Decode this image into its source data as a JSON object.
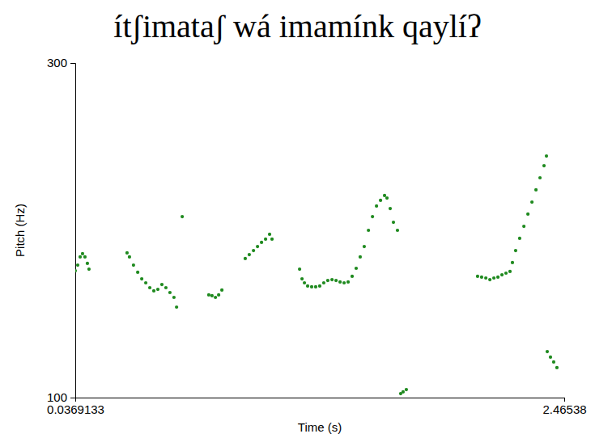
{
  "chart_data": {
    "type": "scatter",
    "title": "ítʃimataʃ wá imamínk qaylíʔ",
    "x_label": "Time (s)",
    "y_label": "Pitch (Hz)",
    "xlim": [
      0.0369133,
      2.46538
    ],
    "xticks": [
      0.0369133,
      2.46538
    ],
    "ylim": [
      100,
      300
    ],
    "yticks": [
      100,
      300
    ],
    "color": "#1f8a1f",
    "marker": "circle",
    "grid": false,
    "x": [
      0.037,
      0.049,
      0.061,
      0.073,
      0.085,
      0.097,
      0.105,
      0.294,
      0.306,
      0.326,
      0.347,
      0.367,
      0.387,
      0.407,
      0.427,
      0.447,
      0.467,
      0.487,
      0.507,
      0.527,
      0.54,
      0.568,
      0.7,
      0.716,
      0.733,
      0.749,
      0.765,
      0.881,
      0.901,
      0.922,
      0.942,
      0.962,
      0.982,
      1.002,
      1.014,
      1.151,
      1.163,
      1.175,
      1.191,
      1.211,
      1.231,
      1.251,
      1.271,
      1.291,
      1.312,
      1.332,
      1.352,
      1.372,
      1.392,
      1.412,
      1.432,
      1.452,
      1.472,
      1.493,
      1.513,
      1.533,
      1.553,
      1.573,
      1.585,
      1.601,
      1.617,
      1.637,
      1.653,
      1.665,
      1.681,
      2.035,
      2.055,
      2.076,
      2.096,
      2.116,
      2.136,
      2.156,
      2.176,
      2.196,
      2.208,
      2.224,
      2.244,
      2.265,
      2.285,
      2.305,
      2.325,
      2.345,
      2.365,
      2.377,
      2.381,
      2.397,
      2.413,
      2.429
    ],
    "values": [
      175.8,
      179.2,
      184.1,
      186.0,
      184.1,
      180.2,
      176.8,
      186.5,
      184.1,
      179.2,
      174.9,
      171.0,
      168.6,
      165.7,
      163.8,
      164.7,
      167.6,
      165.7,
      162.8,
      159.9,
      154.1,
      208.2,
      161.4,
      160.9,
      159.9,
      161.4,
      164.3,
      183.1,
      185.5,
      187.9,
      190.3,
      192.8,
      194.7,
      197.6,
      194.7,
      176.8,
      171.0,
      168.6,
      166.7,
      166.2,
      166.2,
      166.7,
      168.6,
      170.0,
      170.5,
      170.0,
      169.1,
      168.6,
      169.1,
      172.5,
      177.3,
      184.1,
      190.3,
      200.0,
      208.2,
      214.5,
      217.9,
      220.8,
      219.3,
      213.0,
      204.8,
      200.0,
      102.4,
      103.4,
      104.8,
      172.5,
      172.0,
      171.5,
      170.5,
      171.5,
      172.0,
      173.4,
      174.4,
      175.4,
      180.7,
      187.9,
      195.2,
      202.4,
      209.7,
      216.9,
      224.2,
      231.4,
      238.6,
      244.4,
      127.5,
      124.2,
      121.3,
      117.9
    ]
  }
}
